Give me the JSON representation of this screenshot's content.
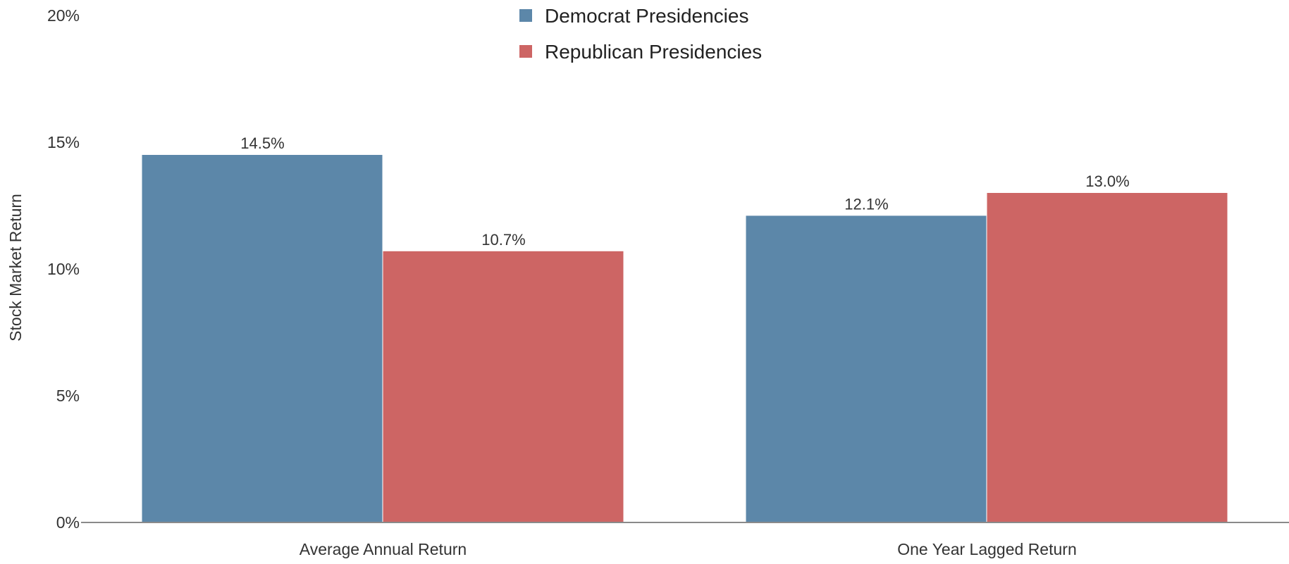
{
  "chart_data": {
    "type": "bar",
    "categories": [
      "Average Annual Return",
      "One Year Lagged Return"
    ],
    "series": [
      {
        "name": "Democrat Presidencies",
        "color": "#5c87a9",
        "values": [
          14.5,
          12.1
        ],
        "labels": [
          "14.5%",
          "12.1%"
        ]
      },
      {
        "name": "Republican Presidencies",
        "color": "#cd6564",
        "values": [
          10.7,
          13.0
        ],
        "labels": [
          "10.7%",
          "13.0%"
        ]
      }
    ],
    "ylabel": "Stock Market Return",
    "ylim": [
      0,
      20
    ],
    "yticks": [
      0,
      5,
      10,
      15,
      20
    ],
    "ytick_labels": [
      "0%",
      "5%",
      "10%",
      "15%",
      "20%"
    ],
    "legend_position": "top-center",
    "grid": false
  }
}
